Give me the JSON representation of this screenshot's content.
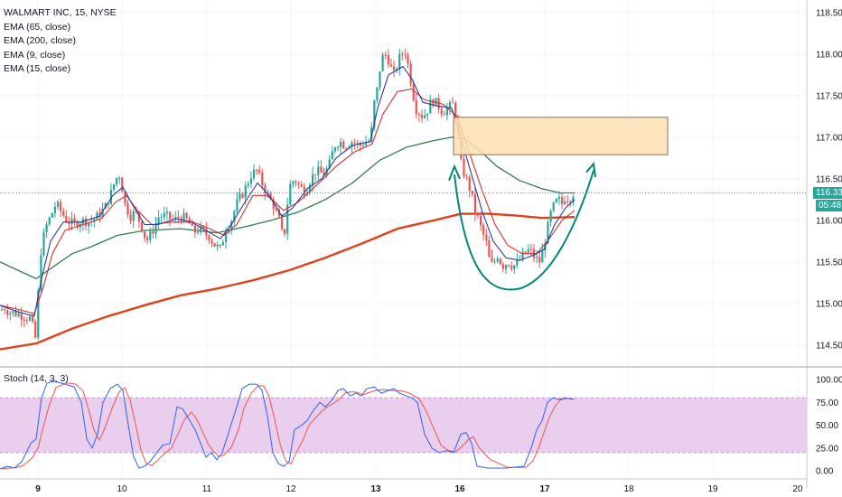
{
  "chart_data": {
    "type": "candlestick",
    "title": "WALMART INC, 15, NYSE",
    "indicators": [
      {
        "label": "EMA (65, close)",
        "color": "#2e7d4f"
      },
      {
        "label": "EMA (200, close)",
        "color": "#e0401a"
      },
      {
        "label": "EMA (9, close)",
        "color": "#2b3a9e"
      },
      {
        "label": "EMA (15, close)",
        "color": "#d32f2f"
      }
    ],
    "price_ticks": [
      "118.50",
      "118.00",
      "117.50",
      "117.00",
      "116.50",
      "116.00",
      "115.50",
      "115.00",
      "114.50"
    ],
    "price_tick_values": [
      118.5,
      118.0,
      117.5,
      117.0,
      116.5,
      116.0,
      115.5,
      115.0,
      114.5
    ],
    "ylim": [
      114.25,
      118.65
    ],
    "x_ticks": [
      "9",
      "10",
      "11",
      "12",
      "13",
      "16",
      "17",
      "18",
      "19",
      "20"
    ],
    "current_price": "116.33",
    "countdown": "05:48",
    "up_color": "#26a69a",
    "down_color": "#ef5350",
    "close_path": [
      [
        0,
        114.92
      ],
      [
        5,
        114.95
      ],
      [
        10,
        114.9
      ],
      [
        18,
        114.88
      ],
      [
        26,
        114.85
      ],
      [
        34,
        114.82
      ],
      [
        40,
        114.55
      ],
      [
        44,
        115.55
      ],
      [
        50,
        115.9
      ],
      [
        56,
        116.05
      ],
      [
        62,
        116.2
      ],
      [
        68,
        116.1
      ],
      [
        74,
        116.0
      ],
      [
        82,
        115.95
      ],
      [
        90,
        116.0
      ],
      [
        100,
        115.98
      ],
      [
        108,
        116.05
      ],
      [
        116,
        116.15
      ],
      [
        122,
        116.3
      ],
      [
        128,
        116.5
      ],
      [
        133,
        116.55
      ],
      [
        138,
        116.2
      ],
      [
        144,
        116.05
      ],
      [
        150,
        116.1
      ],
      [
        156,
        115.95
      ],
      [
        162,
        115.75
      ],
      [
        168,
        115.85
      ],
      [
        176,
        116.05
      ],
      [
        184,
        116.05
      ],
      [
        192,
        116.0
      ],
      [
        200,
        116.05
      ],
      [
        208,
        116.0
      ],
      [
        214,
        115.85
      ],
      [
        220,
        115.9
      ],
      [
        226,
        115.85
      ],
      [
        232,
        115.8
      ],
      [
        238,
        115.7
      ],
      [
        244,
        115.65
      ],
      [
        250,
        115.9
      ],
      [
        256,
        116.0
      ],
      [
        262,
        116.2
      ],
      [
        270,
        116.35
      ],
      [
        278,
        116.55
      ],
      [
        284,
        116.6
      ],
      [
        290,
        116.45
      ],
      [
        296,
        116.3
      ],
      [
        302,
        116.2
      ],
      [
        308,
        116.05
      ],
      [
        314,
        115.75
      ],
      [
        320,
        116.4
      ],
      [
        326,
        116.5
      ],
      [
        332,
        116.4
      ],
      [
        338,
        116.35
      ],
      [
        344,
        116.5
      ],
      [
        350,
        116.6
      ],
      [
        358,
        116.55
      ],
      [
        364,
        116.65
      ],
      [
        370,
        116.9
      ],
      [
        376,
        116.95
      ],
      [
        382,
        116.9
      ],
      [
        390,
        116.95
      ],
      [
        398,
        116.9
      ],
      [
        404,
        116.95
      ],
      [
        410,
        116.95
      ],
      [
        414,
        117.4
      ],
      [
        418,
        117.6
      ],
      [
        422,
        117.95
      ],
      [
        428,
        118.0
      ],
      [
        432,
        117.85
      ],
      [
        436,
        117.75
      ],
      [
        442,
        117.95
      ],
      [
        448,
        118.05
      ],
      [
        452,
        117.85
      ],
      [
        456,
        117.6
      ],
      [
        460,
        117.35
      ],
      [
        464,
        117.3
      ],
      [
        468,
        117.25
      ],
      [
        472,
        117.3
      ],
      [
        478,
        117.45
      ],
      [
        484,
        117.4
      ],
      [
        490,
        117.3
      ],
      [
        496,
        117.35
      ],
      [
        502,
        117.4
      ],
      [
        506,
        117.15
      ],
      [
        510,
        116.7
      ],
      [
        514,
        116.55
      ],
      [
        518,
        116.45
      ],
      [
        522,
        116.3
      ],
      [
        526,
        116.1
      ],
      [
        530,
        116.0
      ],
      [
        534,
        115.85
      ],
      [
        538,
        115.75
      ],
      [
        542,
        115.5
      ],
      [
        546,
        115.45
      ],
      [
        550,
        115.6
      ],
      [
        556,
        115.45
      ],
      [
        562,
        115.5
      ],
      [
        568,
        115.45
      ],
      [
        574,
        115.5
      ],
      [
        580,
        115.6
      ],
      [
        586,
        115.65
      ],
      [
        592,
        115.55
      ],
      [
        598,
        115.5
      ],
      [
        602,
        115.7
      ],
      [
        606,
        115.9
      ],
      [
        610,
        116.1
      ],
      [
        614,
        116.2
      ],
      [
        618,
        116.25
      ],
      [
        622,
        116.2
      ],
      [
        626,
        116.3
      ],
      [
        630,
        116.25
      ],
      [
        634,
        116.33
      ]
    ],
    "ema9_path": [
      [
        0,
        114.98
      ],
      [
        20,
        114.9
      ],
      [
        38,
        114.85
      ],
      [
        46,
        115.3
      ],
      [
        56,
        115.75
      ],
      [
        70,
        115.98
      ],
      [
        90,
        115.98
      ],
      [
        110,
        116.05
      ],
      [
        125,
        116.3
      ],
      [
        136,
        116.4
      ],
      [
        146,
        116.2
      ],
      [
        160,
        115.95
      ],
      [
        175,
        115.95
      ],
      [
        195,
        116.02
      ],
      [
        212,
        115.98
      ],
      [
        228,
        115.88
      ],
      [
        244,
        115.78
      ],
      [
        256,
        115.95
      ],
      [
        270,
        116.2
      ],
      [
        285,
        116.45
      ],
      [
        298,
        116.3
      ],
      [
        312,
        116.05
      ],
      [
        324,
        116.15
      ],
      [
        340,
        116.38
      ],
      [
        356,
        116.5
      ],
      [
        372,
        116.75
      ],
      [
        390,
        116.9
      ],
      [
        410,
        116.95
      ],
      [
        418,
        117.35
      ],
      [
        430,
        117.75
      ],
      [
        446,
        117.85
      ],
      [
        456,
        117.7
      ],
      [
        468,
        117.42
      ],
      [
        482,
        117.38
      ],
      [
        500,
        117.35
      ],
      [
        510,
        117.0
      ],
      [
        522,
        116.55
      ],
      [
        534,
        116.1
      ],
      [
        546,
        115.75
      ],
      [
        560,
        115.55
      ],
      [
        575,
        115.52
      ],
      [
        590,
        115.58
      ],
      [
        602,
        115.65
      ],
      [
        614,
        115.95
      ],
      [
        626,
        116.15
      ],
      [
        636,
        116.25
      ]
    ],
    "ema15_path": [
      [
        0,
        114.98
      ],
      [
        20,
        114.93
      ],
      [
        38,
        114.88
      ],
      [
        48,
        115.2
      ],
      [
        58,
        115.6
      ],
      [
        72,
        115.88
      ],
      [
        92,
        115.95
      ],
      [
        112,
        116.02
      ],
      [
        128,
        116.22
      ],
      [
        140,
        116.3
      ],
      [
        152,
        116.12
      ],
      [
        168,
        115.95
      ],
      [
        190,
        115.98
      ],
      [
        214,
        115.98
      ],
      [
        232,
        115.9
      ],
      [
        248,
        115.82
      ],
      [
        262,
        115.95
      ],
      [
        280,
        116.3
      ],
      [
        296,
        116.3
      ],
      [
        314,
        116.12
      ],
      [
        330,
        116.22
      ],
      [
        350,
        116.42
      ],
      [
        372,
        116.65
      ],
      [
        392,
        116.82
      ],
      [
        412,
        116.92
      ],
      [
        424,
        117.28
      ],
      [
        440,
        117.55
      ],
      [
        456,
        117.58
      ],
      [
        470,
        117.45
      ],
      [
        490,
        117.4
      ],
      [
        506,
        117.25
      ],
      [
        520,
        116.8
      ],
      [
        534,
        116.35
      ],
      [
        548,
        115.95
      ],
      [
        562,
        115.7
      ],
      [
        578,
        115.6
      ],
      [
        594,
        115.6
      ],
      [
        608,
        115.78
      ],
      [
        622,
        116.0
      ],
      [
        636,
        116.12
      ]
    ],
    "ema65_path": [
      [
        0,
        115.5
      ],
      [
        20,
        115.4
      ],
      [
        40,
        115.3
      ],
      [
        60,
        115.45
      ],
      [
        80,
        115.6
      ],
      [
        100,
        115.68
      ],
      [
        130,
        115.82
      ],
      [
        160,
        115.88
      ],
      [
        200,
        115.9
      ],
      [
        240,
        115.85
      ],
      [
        270,
        115.92
      ],
      [
        300,
        116.0
      ],
      [
        330,
        116.1
      ],
      [
        360,
        116.25
      ],
      [
        390,
        116.45
      ],
      [
        420,
        116.72
      ],
      [
        450,
        116.88
      ],
      [
        480,
        116.96
      ],
      [
        500,
        117.0
      ],
      [
        515,
        116.98
      ],
      [
        530,
        116.85
      ],
      [
        550,
        116.65
      ],
      [
        575,
        116.48
      ],
      [
        600,
        116.38
      ],
      [
        620,
        116.33
      ],
      [
        636,
        116.33
      ]
    ],
    "ema200_path": [
      [
        0,
        114.45
      ],
      [
        40,
        114.52
      ],
      [
        80,
        114.7
      ],
      [
        120,
        114.85
      ],
      [
        160,
        114.98
      ],
      [
        200,
        115.1
      ],
      [
        240,
        115.18
      ],
      [
        280,
        115.28
      ],
      [
        320,
        115.4
      ],
      [
        360,
        115.55
      ],
      [
        400,
        115.72
      ],
      [
        440,
        115.9
      ],
      [
        480,
        116.0
      ],
      [
        510,
        116.08
      ],
      [
        540,
        116.08
      ],
      [
        570,
        116.06
      ],
      [
        600,
        116.03
      ],
      [
        636,
        116.04
      ]
    ],
    "resistance_box": {
      "x0": 502,
      "x1": 739,
      "y_top": 117.24,
      "y_bottom": 116.79,
      "color": "#ffe0b2",
      "border": "#8d6e63"
    },
    "cup_pattern": {
      "color": "#00897b"
    },
    "stochastic": {
      "label": "Stoch (14, 3, 3)",
      "ticks": [
        "100.00",
        "75.00",
        "50.00",
        "25.00",
        "0.00"
      ],
      "tick_values": [
        100,
        75,
        50,
        25,
        0
      ],
      "upper_band": 80,
      "lower_band": 20,
      "band_color": "#e1bee7",
      "k_color": "#2962ff",
      "d_color": "#ef5350",
      "k_path": [
        [
          0,
          2
        ],
        [
          8,
          5
        ],
        [
          16,
          3
        ],
        [
          24,
          10
        ],
        [
          34,
          30
        ],
        [
          40,
          35
        ],
        [
          46,
          80
        ],
        [
          52,
          96
        ],
        [
          60,
          98
        ],
        [
          72,
          95
        ],
        [
          82,
          92
        ],
        [
          90,
          75
        ],
        [
          96,
          35
        ],
        [
          102,
          25
        ],
        [
          108,
          40
        ],
        [
          114,
          75
        ],
        [
          122,
          90
        ],
        [
          130,
          95
        ],
        [
          136,
          88
        ],
        [
          142,
          50
        ],
        [
          148,
          15
        ],
        [
          154,
          3
        ],
        [
          160,
          5
        ],
        [
          166,
          10
        ],
        [
          172,
          18
        ],
        [
          180,
          28
        ],
        [
          188,
          30
        ],
        [
          196,
          70
        ],
        [
          202,
          68
        ],
        [
          210,
          55
        ],
        [
          216,
          45
        ],
        [
          222,
          30
        ],
        [
          228,
          15
        ],
        [
          234,
          20
        ],
        [
          240,
          12
        ],
        [
          246,
          20
        ],
        [
          254,
          45
        ],
        [
          262,
          70
        ],
        [
          268,
          90
        ],
        [
          276,
          95
        ],
        [
          284,
          95
        ],
        [
          290,
          88
        ],
        [
          296,
          60
        ],
        [
          302,
          20
        ],
        [
          308,
          8
        ],
        [
          314,
          5
        ],
        [
          320,
          10
        ],
        [
          326,
          45
        ],
        [
          334,
          50
        ],
        [
          340,
          55
        ],
        [
          346,
          65
        ],
        [
          354,
          75
        ],
        [
          360,
          70
        ],
        [
          368,
          78
        ],
        [
          374,
          88
        ],
        [
          380,
          90
        ],
        [
          388,
          82
        ],
        [
          394,
          85
        ],
        [
          400,
          82
        ],
        [
          406,
          90
        ],
        [
          414,
          92
        ],
        [
          422,
          85
        ],
        [
          430,
          88
        ],
        [
          436,
          90
        ],
        [
          442,
          85
        ],
        [
          450,
          82
        ],
        [
          456,
          80
        ],
        [
          462,
          75
        ],
        [
          470,
          40
        ],
        [
          478,
          25
        ],
        [
          486,
          20
        ],
        [
          494,
          22
        ],
        [
          502,
          20
        ],
        [
          510,
          40
        ],
        [
          516,
          42
        ],
        [
          522,
          30
        ],
        [
          528,
          5
        ],
        [
          540,
          3
        ],
        [
          560,
          3
        ],
        [
          580,
          5
        ],
        [
          588,
          25
        ],
        [
          594,
          45
        ],
        [
          600,
          55
        ],
        [
          606,
          75
        ],
        [
          612,
          80
        ],
        [
          618,
          78
        ],
        [
          626,
          80
        ],
        [
          634,
          78
        ]
      ]
    }
  }
}
